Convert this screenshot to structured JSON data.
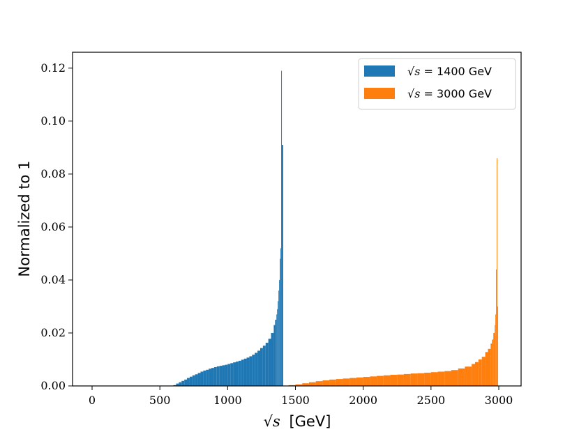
{
  "chart_data": {
    "type": "bar",
    "xlabel_prefix": "√s",
    "xlabel_unit": "[GeV]",
    "ylabel": "Normalized to 1",
    "xlim": [
      -100,
      3150
    ],
    "ylim": [
      0,
      0.126
    ],
    "xticks": [
      0,
      500,
      1000,
      1500,
      2000,
      2500,
      3000
    ],
    "yticks": [
      "0.00",
      "0.02",
      "0.04",
      "0.06",
      "0.08",
      "0.10",
      "0.12"
    ],
    "bin_width": 10,
    "legend_position": "top-right",
    "series": [
      {
        "name": "√s = 1400 GeV",
        "legend_prefix": "√s",
        "legend_rest": " = 1400 GeV",
        "color": "#1f77b4",
        "x": [
          600,
          620,
          640,
          660,
          680,
          700,
          720,
          740,
          760,
          780,
          800,
          820,
          840,
          860,
          880,
          900,
          920,
          940,
          960,
          980,
          1000,
          1020,
          1040,
          1060,
          1080,
          1100,
          1120,
          1140,
          1160,
          1180,
          1200,
          1220,
          1240,
          1260,
          1280,
          1300,
          1320,
          1340,
          1350,
          1360,
          1365,
          1370,
          1375,
          1380,
          1385,
          1390,
          1395,
          1400
        ],
        "values": [
          0.0003,
          0.0009,
          0.0014,
          0.0019,
          0.0024,
          0.003,
          0.0035,
          0.004,
          0.0044,
          0.0049,
          0.0054,
          0.0058,
          0.0061,
          0.0065,
          0.0068,
          0.0071,
          0.0074,
          0.0076,
          0.0078,
          0.008,
          0.0083,
          0.0086,
          0.0089,
          0.0092,
          0.0095,
          0.0099,
          0.0103,
          0.0107,
          0.0112,
          0.0118,
          0.0125,
          0.0133,
          0.0143,
          0.0152,
          0.0163,
          0.0178,
          0.02,
          0.023,
          0.025,
          0.027,
          0.029,
          0.032,
          0.036,
          0.04,
          0.048,
          0.052,
          0.119,
          0.091
        ]
      },
      {
        "name": "√s = 3000 GeV",
        "legend_prefix": "√s",
        "legend_rest": " = 3000 GeV",
        "color": "#ff7f0e",
        "x": [
          1450,
          1500,
          1550,
          1600,
          1650,
          1700,
          1750,
          1800,
          1850,
          1900,
          1950,
          2000,
          2050,
          2100,
          2150,
          2200,
          2250,
          2300,
          2350,
          2400,
          2450,
          2500,
          2550,
          2600,
          2650,
          2700,
          2750,
          2800,
          2825,
          2850,
          2875,
          2900,
          2920,
          2940,
          2950,
          2960,
          2970,
          2975,
          2980,
          2985,
          2990,
          2995,
          3000
        ],
        "values": [
          0.0003,
          0.0006,
          0.001,
          0.0014,
          0.0018,
          0.0021,
          0.0024,
          0.0026,
          0.0028,
          0.003,
          0.0032,
          0.0034,
          0.0036,
          0.0038,
          0.004,
          0.0042,
          0.0043,
          0.0045,
          0.0047,
          0.0048,
          0.005,
          0.0052,
          0.0054,
          0.0056,
          0.006,
          0.0066,
          0.0073,
          0.0083,
          0.009,
          0.01,
          0.011,
          0.0128,
          0.014,
          0.016,
          0.0175,
          0.02,
          0.023,
          0.027,
          0.044,
          0.086,
          0.03,
          0.0,
          0.0
        ]
      }
    ]
  }
}
